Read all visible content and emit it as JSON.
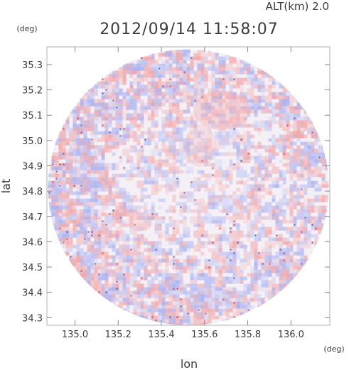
{
  "header": {
    "alt_label": "ALT(km) 2.0",
    "timestamp": "2012/09/14 11:58:07"
  },
  "chart_data": {
    "type": "heatmap",
    "title": "2012/09/14 11:58:07",
    "xlabel": "lon",
    "ylabel": "lat",
    "x_unit": "(deg)",
    "y_unit": "(deg)",
    "xlim": [
      134.87,
      136.18
    ],
    "ylim": [
      34.27,
      35.37
    ],
    "x_ticks": [
      "135.0",
      "135.2",
      "135.4",
      "135.6",
      "135.8",
      "136.0"
    ],
    "x_tick_values": [
      135.0,
      135.2,
      135.4,
      135.6,
      135.8,
      136.0
    ],
    "y_ticks": [
      "35.3",
      "35.2",
      "35.1",
      "35.0",
      "34.9",
      "34.8",
      "34.7",
      "34.6",
      "34.5",
      "34.4",
      "34.3"
    ],
    "y_tick_values": [
      35.3,
      35.2,
      35.1,
      35.0,
      34.9,
      34.8,
      34.7,
      34.6,
      34.5,
      34.4,
      34.3
    ],
    "grid": false,
    "domain": {
      "center_lon": 135.525,
      "center_lat": 34.815,
      "radius_lon": 0.65,
      "radius_lat": 0.545
    },
    "colors": {
      "positive": "#f4a6a6",
      "negative": "#a9b2f2",
      "neutral": "#f4f0f6"
    }
  }
}
